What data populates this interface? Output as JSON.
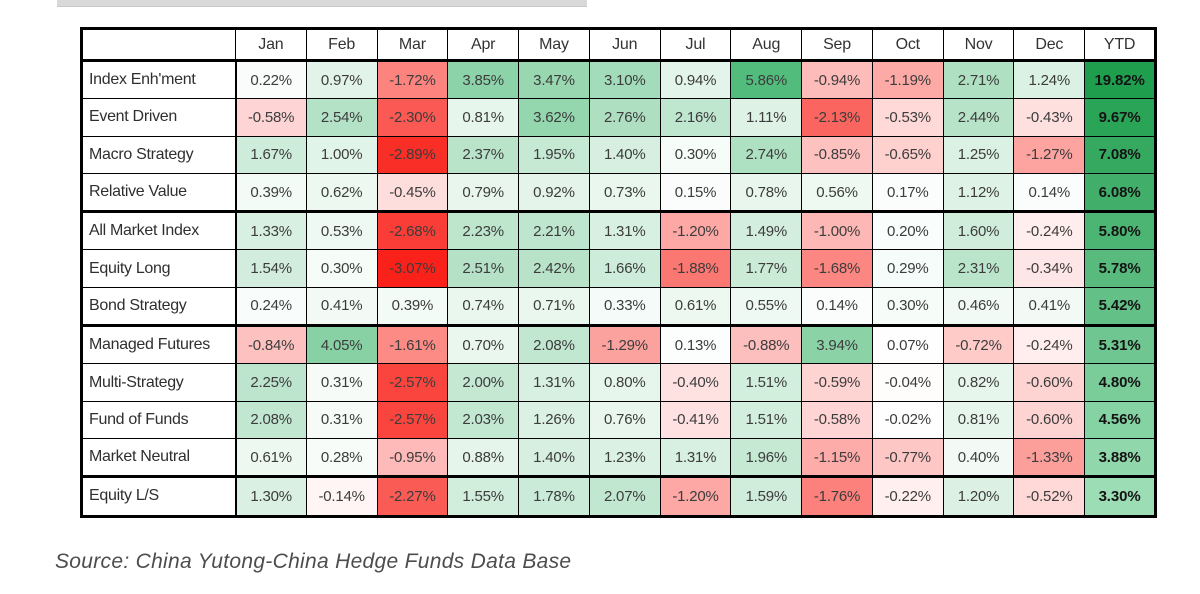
{
  "chart_data": {
    "type": "heatmap",
    "title": "",
    "columns": [
      "Jan",
      "Feb",
      "Mar",
      "Apr",
      "May",
      "Jun",
      "Jul",
      "Aug",
      "Sep",
      "Oct",
      "Nov",
      "Dec",
      "YTD"
    ],
    "value_format": "percent_2dp",
    "rows": [
      {
        "label": "Index Enh'ment",
        "monthly": [
          0.22,
          0.97,
          -1.72,
          3.85,
          3.47,
          3.1,
          0.94,
          5.86,
          -0.94,
          -1.19,
          2.71,
          1.24
        ],
        "ytd": 19.82
      },
      {
        "label": "Event Driven",
        "monthly": [
          -0.58,
          2.54,
          -2.3,
          0.81,
          3.62,
          2.76,
          2.16,
          1.11,
          -2.13,
          -0.53,
          2.44,
          -0.43
        ],
        "ytd": 9.67
      },
      {
        "label": "Macro Strategy",
        "monthly": [
          1.67,
          1.0,
          -2.89,
          2.37,
          1.95,
          1.4,
          0.3,
          2.74,
          -0.85,
          -0.65,
          1.25,
          -1.27
        ],
        "ytd": 7.08
      },
      {
        "label": "Relative Value",
        "monthly": [
          0.39,
          0.62,
          -0.45,
          0.79,
          0.92,
          0.73,
          0.15,
          0.78,
          0.56,
          0.17,
          1.12,
          0.14
        ],
        "ytd": 6.08
      },
      {
        "label": "All Market Index",
        "monthly": [
          1.33,
          0.53,
          -2.68,
          2.23,
          2.21,
          1.31,
          -1.2,
          1.49,
          -1.0,
          0.2,
          1.6,
          -0.24
        ],
        "ytd": 5.8
      },
      {
        "label": "Equity Long",
        "monthly": [
          1.54,
          0.3,
          -3.07,
          2.51,
          2.42,
          1.66,
          -1.88,
          1.77,
          -1.68,
          0.29,
          2.31,
          -0.34
        ],
        "ytd": 5.78
      },
      {
        "label": "Bond Strategy",
        "monthly": [
          0.24,
          0.41,
          0.39,
          0.74,
          0.71,
          0.33,
          0.61,
          0.55,
          0.14,
          0.3,
          0.46,
          0.41
        ],
        "ytd": 5.42
      },
      {
        "label": "Managed Futures",
        "monthly": [
          -0.84,
          4.05,
          -1.61,
          0.7,
          2.08,
          -1.29,
          0.13,
          -0.88,
          3.94,
          0.07,
          -0.72,
          -0.24
        ],
        "ytd": 5.31
      },
      {
        "label": "Multi-Strategy",
        "monthly": [
          2.25,
          0.31,
          -2.57,
          2.0,
          1.31,
          0.8,
          -0.4,
          1.51,
          -0.59,
          -0.04,
          0.82,
          -0.6
        ],
        "ytd": 4.8
      },
      {
        "label": "Fund of Funds",
        "monthly": [
          2.08,
          0.31,
          -2.57,
          2.03,
          1.26,
          0.76,
          -0.41,
          1.51,
          -0.58,
          -0.02,
          0.81,
          -0.6
        ],
        "ytd": 4.56
      },
      {
        "label": "Market Neutral",
        "monthly": [
          0.61,
          0.28,
          -0.95,
          0.88,
          1.4,
          1.23,
          1.31,
          1.96,
          -1.15,
          -0.77,
          0.4,
          -1.33
        ],
        "ytd": 3.88
      },
      {
        "label": "Equity L/S",
        "monthly": [
          1.3,
          -0.14,
          -2.27,
          1.55,
          1.78,
          2.07,
          -1.2,
          1.59,
          -1.76,
          -0.22,
          1.2,
          -0.52
        ],
        "ytd": 3.3
      }
    ],
    "color_scale": {
      "monthly_zero": "#FFFFFF",
      "monthly_positive_max": "#52BC7C",
      "monthly_negative_max": "#F92119",
      "ytd_min_color": "#9CDDB5",
      "ytd_max_color": "#1F9E4E"
    },
    "legend_position": "none",
    "grid": true,
    "source": "Source: China Yutong-China Hedge Funds Data Base"
  }
}
